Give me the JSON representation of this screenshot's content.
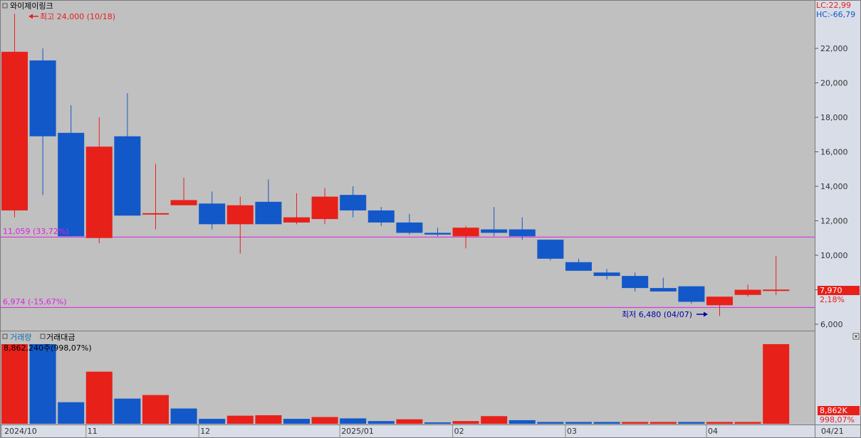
{
  "stock_name": "와이제이링크",
  "indicators": {
    "lc": "LC:22,99",
    "hc": "HC:-66,79"
  },
  "annotations": {
    "high": "최고 24,000 (10/18)",
    "low": "최저 6,480 (04/07)",
    "line_upper": "11,059 (33,72%)",
    "line_lower": "6,974 (-15,67%)",
    "current_price": "7,970",
    "current_change": "2,18%"
  },
  "volume_panel": {
    "tab_volume": "거래량",
    "tab_amount": "거래대금",
    "info": "8,862,240주(998,07%)",
    "current_volume": "8,862K",
    "current_pct": "998,07%"
  },
  "colors": {
    "up": "#e8201a",
    "down": "#1358c8",
    "level_line": "#e020e0",
    "background": "#c0c0c0",
    "axis_bg": "#d8dde8"
  },
  "chart_data": [
    {
      "type": "candlestick",
      "period": "weekly",
      "price_ticks": [
        "22,000",
        "20,000",
        "18,000",
        "16,000",
        "14,000",
        "12,000",
        "10,000",
        "8,000",
        "6,000"
      ],
      "tick_values": [
        22000,
        20000,
        18000,
        16000,
        14000,
        12000,
        10000,
        8000,
        6000
      ],
      "ylim": [
        5600,
        24600
      ],
      "x_labels": [
        {
          "index": 0,
          "label": "2024/10"
        },
        {
          "index": 3,
          "label": "11"
        },
        {
          "index": 7,
          "label": "12"
        },
        {
          "index": 12,
          "label": "2025/01"
        },
        {
          "index": 16,
          "label": "02"
        },
        {
          "index": 20,
          "label": "03"
        },
        {
          "index": 25,
          "label": "04"
        },
        {
          "index": 29,
          "label": "04/21"
        }
      ],
      "levels": [
        11059,
        6974
      ],
      "candles": [
        {
          "o": 12600,
          "h": 24000,
          "l": 12200,
          "c": 21800
        },
        {
          "o": 21300,
          "h": 22000,
          "l": 13500,
          "c": 16900
        },
        {
          "o": 17100,
          "h": 18700,
          "l": 11100,
          "c": 11100
        },
        {
          "o": 11000,
          "h": 18000,
          "l": 10700,
          "c": 16300
        },
        {
          "o": 16900,
          "h": 19400,
          "l": 12300,
          "c": 12300
        },
        {
          "o": 12400,
          "h": 15300,
          "l": 11500,
          "c": 12400
        },
        {
          "o": 12900,
          "h": 14500,
          "l": 12900,
          "c": 13200
        },
        {
          "o": 13000,
          "h": 13700,
          "l": 11500,
          "c": 11800
        },
        {
          "o": 11800,
          "h": 13400,
          "l": 10100,
          "c": 12900
        },
        {
          "o": 13100,
          "h": 14400,
          "l": 11800,
          "c": 11800
        },
        {
          "o": 11900,
          "h": 13600,
          "l": 11800,
          "c": 12200
        },
        {
          "o": 12100,
          "h": 13900,
          "l": 11800,
          "c": 13400
        },
        {
          "o": 13500,
          "h": 14000,
          "l": 12200,
          "c": 12600
        },
        {
          "o": 12600,
          "h": 12800,
          "l": 11700,
          "c": 11900
        },
        {
          "o": 11900,
          "h": 12400,
          "l": 11200,
          "c": 11300
        },
        {
          "o": 11300,
          "h": 11600,
          "l": 11100,
          "c": 11200
        },
        {
          "o": 11100,
          "h": 11700,
          "l": 10400,
          "c": 11600
        },
        {
          "o": 11500,
          "h": 12800,
          "l": 11100,
          "c": 11300
        },
        {
          "o": 11500,
          "h": 12200,
          "l": 10900,
          "c": 11100
        },
        {
          "o": 10900,
          "h": 10900,
          "l": 9700,
          "c": 9800
        },
        {
          "o": 9600,
          "h": 9800,
          "l": 9100,
          "c": 9100
        },
        {
          "o": 9000,
          "h": 9200,
          "l": 8600,
          "c": 8800
        },
        {
          "o": 8800,
          "h": 9000,
          "l": 7900,
          "c": 8100
        },
        {
          "o": 8100,
          "h": 8700,
          "l": 7900,
          "c": 7900
        },
        {
          "o": 8200,
          "h": 8200,
          "l": 7200,
          "c": 7300
        },
        {
          "o": 7100,
          "h": 7600,
          "l": 6480,
          "c": 7600
        },
        {
          "o": 7700,
          "h": 8300,
          "l": 7600,
          "c": 8000
        },
        {
          "o": 7970,
          "h": 9950,
          "l": 7700,
          "c": 7970
        }
      ]
    },
    {
      "type": "bar",
      "name": "거래량",
      "ylim": [
        0,
        8862240
      ],
      "values": [
        8900000,
        8900000,
        2400000,
        5800000,
        2800000,
        3200000,
        1700000,
        550000,
        900000,
        950000,
        550000,
        750000,
        600000,
        300000,
        500000,
        100000,
        300000,
        850000,
        400000,
        200000,
        200000,
        200000,
        200000,
        200000,
        200000,
        200000,
        200000,
        8862240
      ],
      "directions": [
        "up",
        "down",
        "down",
        "up",
        "down",
        "up",
        "down",
        "down",
        "up",
        "up",
        "down",
        "up",
        "down",
        "down",
        "up",
        "down",
        "up",
        "up",
        "down",
        "down",
        "down",
        "down",
        "up",
        "up",
        "down",
        "up",
        "up",
        "up"
      ]
    }
  ]
}
